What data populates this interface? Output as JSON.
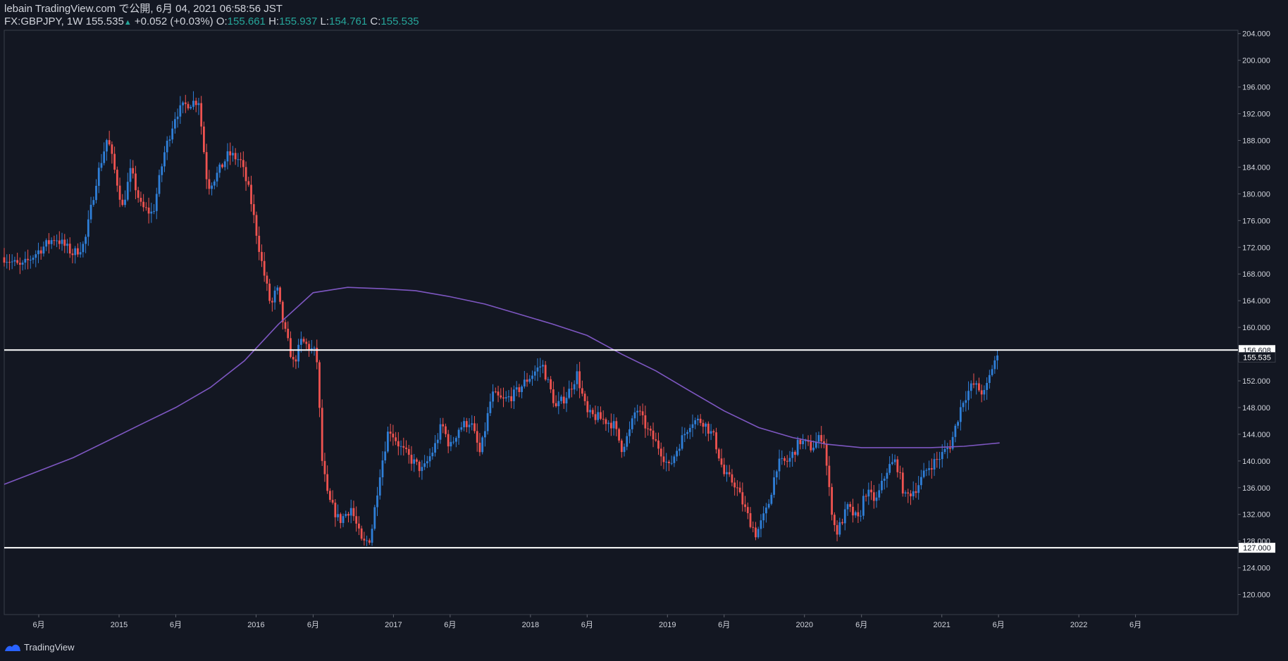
{
  "header": {
    "publish_line": "lebain TradingView.com で公開, 6月 04, 2021 06:58:56 JST",
    "symbol": "FX:GBPJPY, 1W",
    "price": "155.535",
    "change": "+0.052 (+0.03%)",
    "o_label": "O:",
    "o_value": "155.661",
    "h_label": "H:",
    "h_value": "155.937",
    "l_label": "L:",
    "l_value": "154.761",
    "c_label": "C:",
    "c_value": "155.535"
  },
  "footer": {
    "brand": "TradingView"
  },
  "colors": {
    "background": "#131722",
    "up": "#2f7fd8",
    "down": "#ef5350",
    "ma": "#7e57c2",
    "hline": "#ffffff",
    "grid_text": "#d1d4dc",
    "border": "#3a3f4b"
  },
  "chart_data": {
    "type": "candlestick",
    "symbol": "FX:GBPJPY",
    "interval": "1W",
    "y_range": [
      117.0,
      204.5
    ],
    "x_range": [
      "2014-03-01",
      "2023-03-01"
    ],
    "y_ticks": [
      120,
      124,
      128,
      132,
      136,
      140,
      144,
      148,
      152,
      156,
      160,
      164,
      168,
      172,
      176,
      180,
      184,
      188,
      192,
      196,
      200,
      204
    ],
    "x_ticks": [
      {
        "date": "2014-06-01",
        "label": "6月"
      },
      {
        "date": "2015-01-01",
        "label": "2015"
      },
      {
        "date": "2015-06-01",
        "label": "6月"
      },
      {
        "date": "2016-01-01",
        "label": "2016"
      },
      {
        "date": "2016-06-01",
        "label": "6月"
      },
      {
        "date": "2017-01-01",
        "label": "2017"
      },
      {
        "date": "2017-06-01",
        "label": "6月"
      },
      {
        "date": "2018-01-01",
        "label": "2018"
      },
      {
        "date": "2018-06-01",
        "label": "6月"
      },
      {
        "date": "2019-01-01",
        "label": "2019"
      },
      {
        "date": "2019-06-01",
        "label": "6月"
      },
      {
        "date": "2020-01-01",
        "label": "2020"
      },
      {
        "date": "2020-06-01",
        "label": "6月"
      },
      {
        "date": "2021-01-01",
        "label": "2021"
      },
      {
        "date": "2021-06-01",
        "label": "6月"
      },
      {
        "date": "2022-01-01",
        "label": "2022"
      },
      {
        "date": "2022-06-01",
        "label": "6月"
      }
    ],
    "horizontal_lines": [
      {
        "value": 156.608,
        "label": "156.608"
      },
      {
        "value": 127.0,
        "label": "127.000"
      }
    ],
    "last_price": {
      "value": 155.535,
      "label": "155.535"
    },
    "close_path": [
      [
        "2014-03-01",
        170.5
      ],
      [
        "2014-04-15",
        169.0
      ],
      [
        "2014-06-01",
        171.5
      ],
      [
        "2014-07-15",
        173.5
      ],
      [
        "2014-09-01",
        171.0
      ],
      [
        "2014-10-01",
        172.5
      ],
      [
        "2014-11-01",
        182.0
      ],
      [
        "2014-12-01",
        188.5
      ],
      [
        "2015-01-10",
        178.0
      ],
      [
        "2015-02-01",
        183.5
      ],
      [
        "2015-03-01",
        178.0
      ],
      [
        "2015-04-01",
        177.0
      ],
      [
        "2015-05-01",
        186.0
      ],
      [
        "2015-06-01",
        192.0
      ],
      [
        "2015-07-01",
        193.5
      ],
      [
        "2015-08-01",
        194.0
      ],
      [
        "2015-08-25",
        181.0
      ],
      [
        "2015-09-20",
        183.0
      ],
      [
        "2015-10-20",
        186.0
      ],
      [
        "2015-11-20",
        185.0
      ],
      [
        "2015-12-15",
        180.0
      ],
      [
        "2016-01-15",
        170.0
      ],
      [
        "2016-02-10",
        163.0
      ],
      [
        "2016-02-25",
        166.0
      ],
      [
        "2016-03-15",
        160.0
      ],
      [
        "2016-04-10",
        154.5
      ],
      [
        "2016-05-01",
        158.0
      ],
      [
        "2016-06-10",
        156.0
      ],
      [
        "2016-06-25",
        140.0
      ],
      [
        "2016-07-10",
        134.5
      ],
      [
        "2016-08-10",
        131.0
      ],
      [
        "2016-09-10",
        133.0
      ],
      [
        "2016-10-10",
        127.5
      ],
      [
        "2016-11-01",
        128.5
      ],
      [
        "2016-11-25",
        138.0
      ],
      [
        "2016-12-20",
        145.0
      ],
      [
        "2017-01-20",
        142.0
      ],
      [
        "2017-02-20",
        140.0
      ],
      [
        "2017-03-20",
        138.5
      ],
      [
        "2017-04-20",
        142.0
      ],
      [
        "2017-05-10",
        145.5
      ],
      [
        "2017-06-01",
        142.0
      ],
      [
        "2017-06-25",
        145.0
      ],
      [
        "2017-07-25",
        146.0
      ],
      [
        "2017-08-20",
        141.0
      ],
      [
        "2017-09-20",
        150.0
      ],
      [
        "2017-10-20",
        149.0
      ],
      [
        "2017-11-20",
        150.0
      ],
      [
        "2017-12-20",
        152.0
      ],
      [
        "2018-02-01",
        154.5
      ],
      [
        "2018-03-10",
        148.0
      ],
      [
        "2018-04-10",
        150.0
      ],
      [
        "2018-05-05",
        153.0
      ],
      [
        "2018-06-01",
        147.0
      ],
      [
        "2018-07-01",
        146.5
      ],
      [
        "2018-08-10",
        145.5
      ],
      [
        "2018-09-01",
        142.0
      ],
      [
        "2018-09-20",
        144.0
      ],
      [
        "2018-10-10",
        148.0
      ],
      [
        "2018-11-10",
        144.5
      ],
      [
        "2018-12-10",
        142.0
      ],
      [
        "2019-01-05",
        139.0
      ],
      [
        "2019-02-01",
        142.5
      ],
      [
        "2019-03-05",
        146.0
      ],
      [
        "2019-04-05",
        146.0
      ],
      [
        "2019-05-05",
        143.5
      ],
      [
        "2019-06-01",
        138.0
      ],
      [
        "2019-07-01",
        136.5
      ],
      [
        "2019-08-01",
        132.0
      ],
      [
        "2019-08-25",
        129.0
      ],
      [
        "2019-09-25",
        133.0
      ],
      [
        "2019-10-20",
        139.5
      ],
      [
        "2019-11-20",
        140.0
      ],
      [
        "2019-12-20",
        143.0
      ],
      [
        "2020-01-20",
        142.0
      ],
      [
        "2020-02-20",
        144.0
      ],
      [
        "2020-03-10",
        134.0
      ],
      [
        "2020-03-25",
        129.0
      ],
      [
        "2020-04-25",
        133.0
      ],
      [
        "2020-05-25",
        131.0
      ],
      [
        "2020-06-10",
        135.5
      ],
      [
        "2020-07-10",
        134.0
      ],
      [
        "2020-08-10",
        139.0
      ],
      [
        "2020-09-01",
        140.0
      ],
      [
        "2020-09-25",
        134.5
      ],
      [
        "2020-10-25",
        136.0
      ],
      [
        "2020-11-25",
        139.0
      ],
      [
        "2020-12-25",
        140.5
      ],
      [
        "2021-01-25",
        142.5
      ],
      [
        "2021-02-25",
        149.0
      ],
      [
        "2021-03-25",
        151.5
      ],
      [
        "2021-04-25",
        150.0
      ],
      [
        "2021-05-20",
        155.0
      ],
      [
        "2021-06-04",
        155.535
      ]
    ],
    "ma_line": {
      "name": "",
      "points": [
        [
          "2014-03-01",
          136.5
        ],
        [
          "2014-06-01",
          138.5
        ],
        [
          "2014-09-01",
          140.5
        ],
        [
          "2014-12-01",
          143.0
        ],
        [
          "2015-03-01",
          145.5
        ],
        [
          "2015-06-01",
          148.0
        ],
        [
          "2015-09-01",
          151.0
        ],
        [
          "2015-12-01",
          155.0
        ],
        [
          "2016-03-01",
          160.5
        ],
        [
          "2016-06-01",
          165.2
        ],
        [
          "2016-09-01",
          166.0
        ],
        [
          "2016-12-01",
          165.8
        ],
        [
          "2017-03-01",
          165.5
        ],
        [
          "2017-06-01",
          164.6
        ],
        [
          "2017-09-01",
          163.5
        ],
        [
          "2017-12-01",
          162.0
        ],
        [
          "2018-03-01",
          160.5
        ],
        [
          "2018-06-01",
          158.8
        ],
        [
          "2018-09-01",
          156.0
        ],
        [
          "2018-12-01",
          153.5
        ],
        [
          "2019-03-01",
          150.5
        ],
        [
          "2019-06-01",
          147.5
        ],
        [
          "2019-09-01",
          145.0
        ],
        [
          "2019-12-01",
          143.5
        ],
        [
          "2020-03-01",
          142.5
        ],
        [
          "2020-06-01",
          142.0
        ],
        [
          "2020-09-01",
          142.0
        ],
        [
          "2020-12-01",
          142.0
        ],
        [
          "2021-03-01",
          142.2
        ],
        [
          "2021-06-04",
          142.7
        ]
      ]
    }
  }
}
